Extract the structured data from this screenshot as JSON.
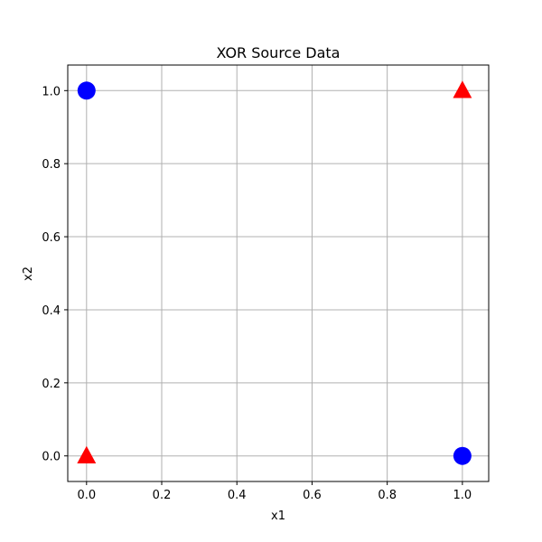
{
  "chart_data": {
    "type": "scatter",
    "title": "XOR Source Data",
    "xlabel": "x1",
    "ylabel": "x2",
    "xlim": [
      -0.05,
      1.07
    ],
    "ylim": [
      -0.07,
      1.07
    ],
    "grid": true,
    "xticks": [
      0.0,
      0.2,
      0.4,
      0.6,
      0.8,
      1.0
    ],
    "yticks": [
      0.0,
      0.2,
      0.4,
      0.6,
      0.8,
      1.0
    ],
    "xtick_labels": [
      "0.0",
      "0.2",
      "0.4",
      "0.6",
      "0.8",
      "1.0"
    ],
    "ytick_labels": [
      "0.0",
      "0.2",
      "0.4",
      "0.6",
      "0.8",
      "1.0"
    ],
    "series": [
      {
        "marker": "circle",
        "color": "#0000ff",
        "points": [
          {
            "x": 0,
            "y": 1
          },
          {
            "x": 1,
            "y": 0
          }
        ]
      },
      {
        "marker": "triangle",
        "color": "#ff0000",
        "points": [
          {
            "x": 0,
            "y": 0
          },
          {
            "x": 1,
            "y": 1
          }
        ]
      }
    ]
  }
}
